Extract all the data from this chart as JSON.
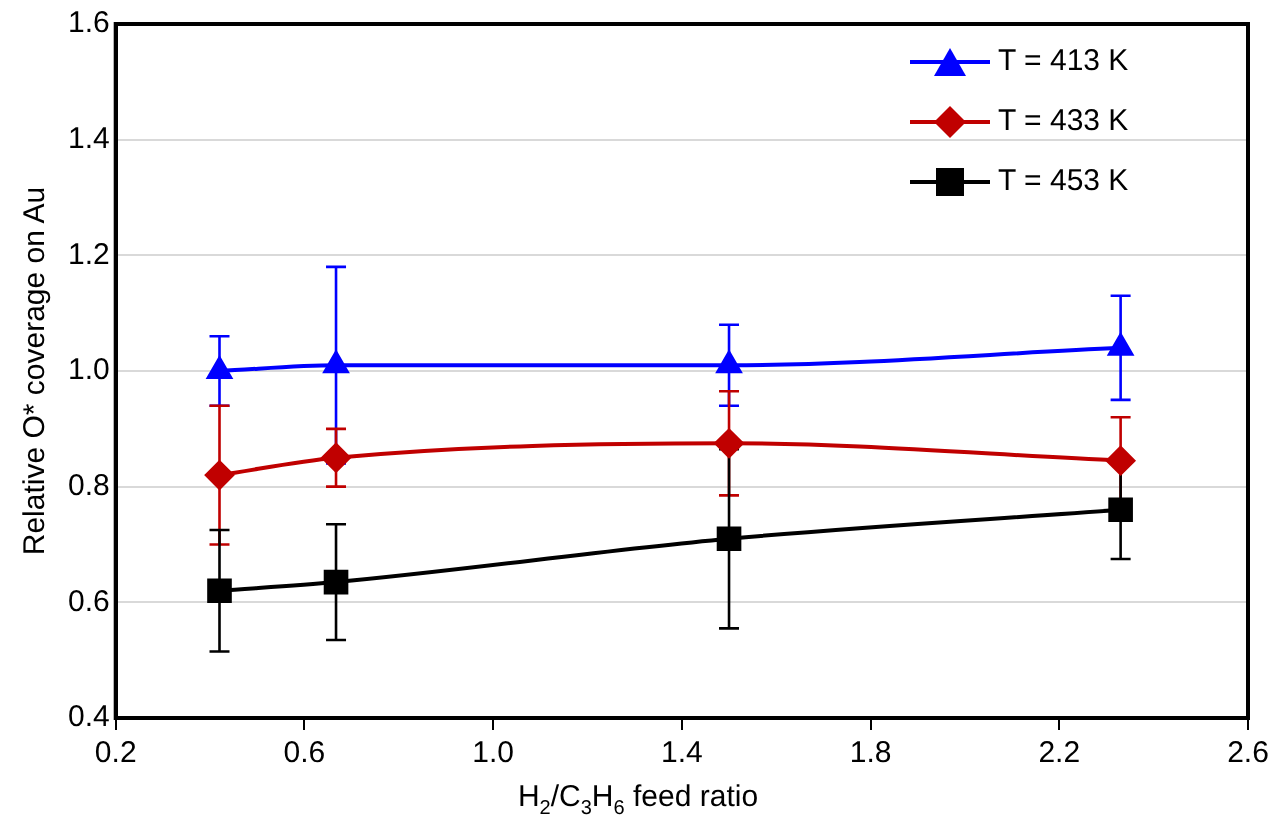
{
  "chart_data": {
    "type": "line",
    "xlabel": "H$_{2}$/C$_{3}$H$_{6}$ feed ratio",
    "ylabel": "Relative O* coverage on Au",
    "x": [
      0.42,
      0.667,
      1.5,
      2.33
    ],
    "series": [
      {
        "name": "T = 413 K",
        "color": "#0000ff",
        "marker": "triangle",
        "values": [
          1.0,
          1.01,
          1.01,
          1.04
        ],
        "errors": [
          0.06,
          0.17,
          0.07,
          0.09
        ]
      },
      {
        "name": "T = 433 K",
        "color": "#c00000",
        "marker": "diamond",
        "values": [
          0.82,
          0.85,
          0.875,
          0.845
        ],
        "errors": [
          0.12,
          0.05,
          0.09,
          0.075
        ]
      },
      {
        "name": "T = 453 K",
        "color": "#000000",
        "marker": "square",
        "values": [
          0.62,
          0.635,
          0.71,
          0.76
        ],
        "errors": [
          0.105,
          0.1,
          0.155,
          0.085
        ]
      }
    ],
    "xlim": [
      0.2,
      2.6
    ],
    "xticks": [
      0.2,
      0.6,
      {
        "value": 1,
        "label": "1.0"
      },
      1.4,
      1.8,
      2.2,
      2.6
    ],
    "ylim": [
      0.4,
      1.6
    ],
    "yticks": [
      0.4,
      0.6,
      0.8,
      {
        "value": 1,
        "label": "1.0"
      },
      1.2,
      1.4,
      1.6
    ],
    "grid": "y",
    "legend": "top right"
  }
}
